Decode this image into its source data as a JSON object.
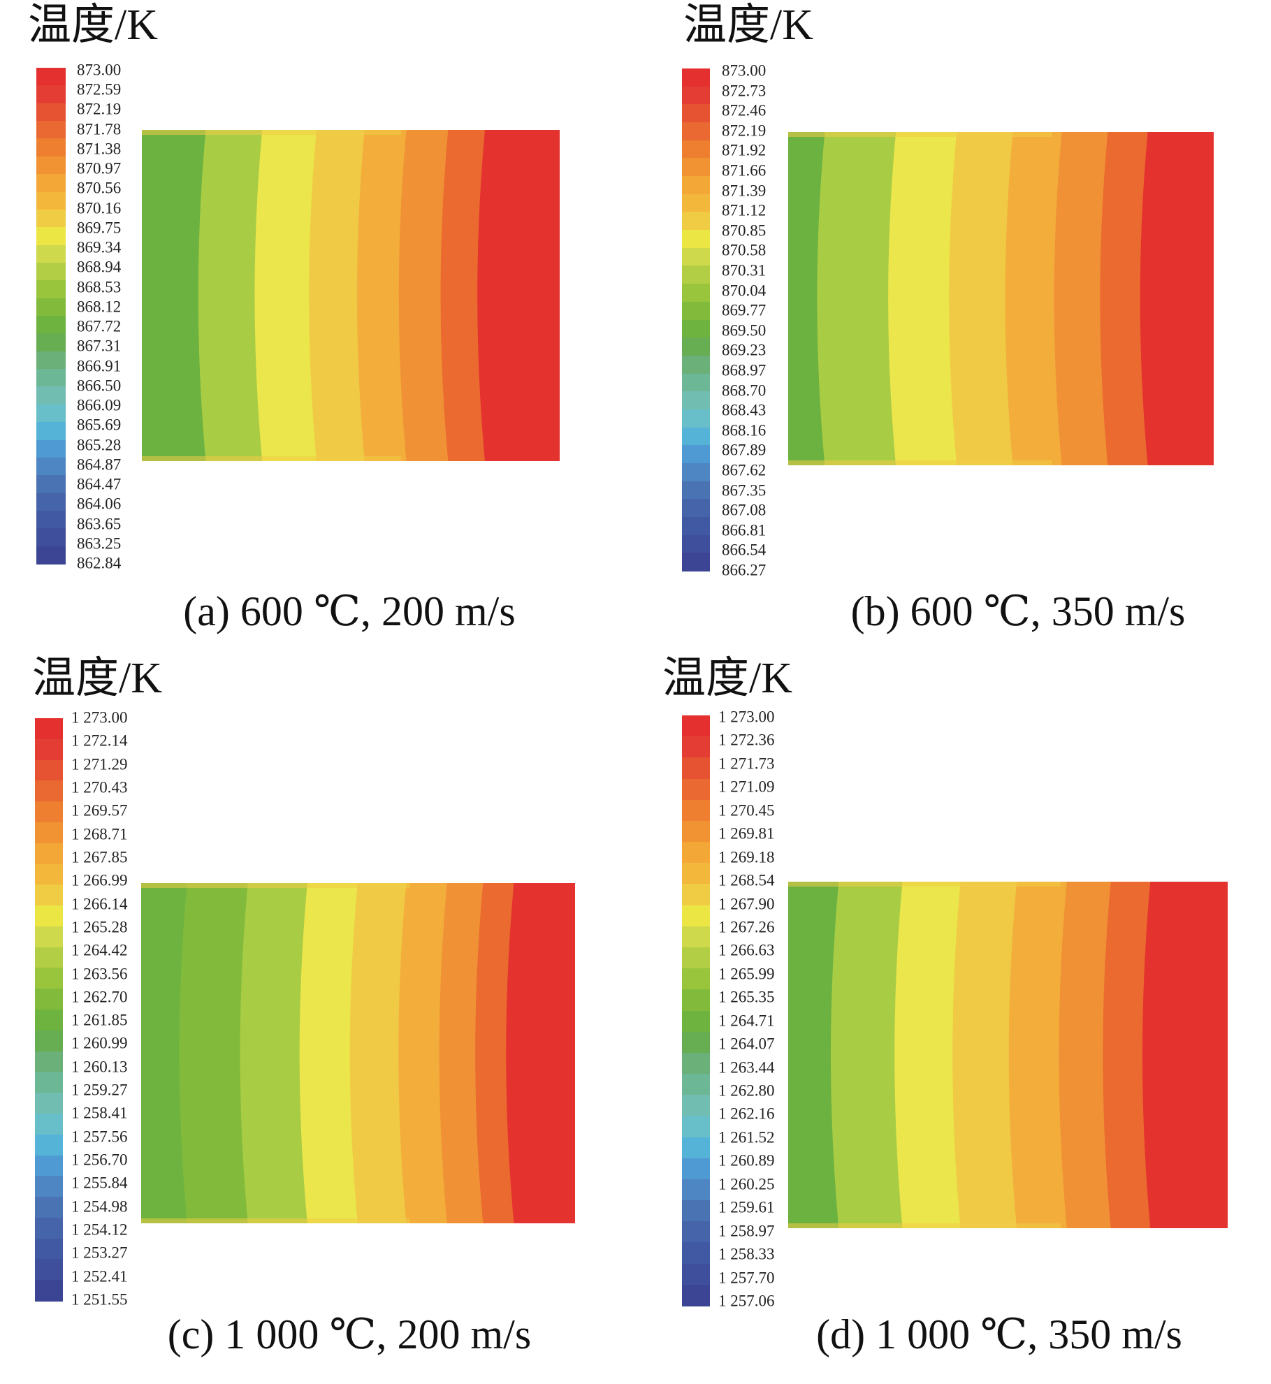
{
  "palette": [
    "#3c4594",
    "#404f9c",
    "#4159a2",
    "#4664a9",
    "#4a73b4",
    "#4d86c3",
    "#4f9ad2",
    "#56b3d8",
    "#68bfc9",
    "#71bdb1",
    "#6cb795",
    "#6ab078",
    "#67ad52",
    "#6eb33f",
    "#82bb3c",
    "#98c53c",
    "#b1ce45",
    "#cfd94c",
    "#ece645",
    "#f0cc45",
    "#f3b73c",
    "#f3a737",
    "#f19233",
    "#ee7e30",
    "#ea6831",
    "#e65332",
    "#e43e34",
    "#e4312f"
  ],
  "panels": [
    {
      "unit_title": "温度/K",
      "caption": "(a) 600 ℃, 200 m/s",
      "ticks": [
        "873.00",
        "872.59",
        "872.19",
        "871.78",
        "871.38",
        "870.97",
        "870.56",
        "870.16",
        "869.75",
        "869.34",
        "868.94",
        "868.53",
        "868.12",
        "867.72",
        "867.31",
        "866.91",
        "866.50",
        "866.09",
        "865.69",
        "865.28",
        "864.87",
        "864.47",
        "864.06",
        "863.65",
        "863.25",
        "862.84"
      ],
      "field_bands": [
        {
          "color": "#6cb240",
          "width": 0.153
        },
        {
          "color": "#a9cc45",
          "width": 0.135
        },
        {
          "color": "#eae64b",
          "width": 0.13
        },
        {
          "color": "#f0ca45",
          "width": 0.115
        },
        {
          "color": "#f2ad3b",
          "width": 0.1
        },
        {
          "color": "#f09135",
          "width": 0.1
        },
        {
          "color": "#ea6a30",
          "width": 0.088
        },
        {
          "color": "#e4322f",
          "width": 0.179
        }
      ]
    },
    {
      "unit_title": "温度/K",
      "caption": "(b) 600 ℃, 350 m/s",
      "ticks": [
        "873.00",
        "872.73",
        "872.46",
        "872.19",
        "871.92",
        "871.66",
        "871.39",
        "871.12",
        "870.85",
        "870.58",
        "870.31",
        "870.04",
        "869.77",
        "869.50",
        "869.23",
        "868.97",
        "868.70",
        "868.43",
        "868.16",
        "867.89",
        "867.62",
        "867.35",
        "867.08",
        "866.81",
        "866.54",
        "866.27"
      ],
      "field_bands": [
        {
          "color": "#6cb240",
          "width": 0.086
        },
        {
          "color": "#a9cc45",
          "width": 0.167
        },
        {
          "color": "#eae64b",
          "width": 0.143
        },
        {
          "color": "#f0ca45",
          "width": 0.132
        },
        {
          "color": "#f2ad3b",
          "width": 0.115
        },
        {
          "color": "#f09135",
          "width": 0.108
        },
        {
          "color": "#ea6a30",
          "width": 0.094
        },
        {
          "color": "#e4322f",
          "width": 0.155
        }
      ]
    },
    {
      "unit_title": "温度/K",
      "caption": "(c) 1 000 ℃, 200 m/s",
      "ticks": [
        "1 273.00",
        "1 272.14",
        "1 271.29",
        "1 270.43",
        "1 269.57",
        "1 268.71",
        "1 267.85",
        "1 266.99",
        "1 266.14",
        "1 265.28",
        "1 264.42",
        "1 263.56",
        "1 262.70",
        "1 261.85",
        "1 260.99",
        "1 260.13",
        "1 259.27",
        "1 258.41",
        "1 257.56",
        "1 256.70",
        "1 255.84",
        "1 254.98",
        "1 254.12",
        "1 253.27",
        "1 252.41",
        "1 251.55"
      ],
      "field_bands": [
        {
          "color": "#6eb33f",
          "width": 0.106
        },
        {
          "color": "#82bb3c",
          "width": 0.14
        },
        {
          "color": "#a9cc45",
          "width": 0.137
        },
        {
          "color": "#eae64b",
          "width": 0.116
        },
        {
          "color": "#f0ca45",
          "width": 0.112
        },
        {
          "color": "#f2ad3b",
          "width": 0.094
        },
        {
          "color": "#f09135",
          "width": 0.083
        },
        {
          "color": "#ea6a30",
          "width": 0.071
        },
        {
          "color": "#e4322f",
          "width": 0.141
        }
      ]
    },
    {
      "unit_title": "温度/K",
      "caption": "(d) 1 000 ℃, 350 m/s",
      "ticks": [
        "1 273.00",
        "1 272.36",
        "1 271.73",
        "1 271.09",
        "1 270.45",
        "1 269.81",
        "1 269.18",
        "1 268.54",
        "1 267.90",
        "1 267.26",
        "1 266.63",
        "1 265.99",
        "1 265.35",
        "1 264.71",
        "1 264.07",
        "1 263.44",
        "1 262.80",
        "1 262.16",
        "1 261.52",
        "1 260.89",
        "1 260.25",
        "1 259.61",
        "1 258.97",
        "1 258.33",
        "1 257.70",
        "1 257.06"
      ],
      "field_bands": [
        {
          "color": "#6cb240",
          "width": 0.115
        },
        {
          "color": "#a9cc45",
          "width": 0.145
        },
        {
          "color": "#eae64b",
          "width": 0.132
        },
        {
          "color": "#f0ca45",
          "width": 0.128
        },
        {
          "color": "#f2ad3b",
          "width": 0.114
        },
        {
          "color": "#f09135",
          "width": 0.1
        },
        {
          "color": "#ea6a30",
          "width": 0.09
        },
        {
          "color": "#e4322f",
          "width": 0.176
        }
      ]
    }
  ],
  "chart_data": [
    {
      "type": "heatmap",
      "title": "温度/K",
      "caption": "(a) 600 ℃, 200 m/s",
      "colorbar_range": [
        862.84,
        873.0
      ],
      "field_min": 868.12,
      "field_max": 873.0
    },
    {
      "type": "heatmap",
      "title": "温度/K",
      "caption": "(b) 600 ℃, 350 m/s",
      "colorbar_range": [
        866.27,
        873.0
      ],
      "field_min": 869.77,
      "field_max": 873.0
    },
    {
      "type": "heatmap",
      "title": "温度/K",
      "caption": "(c) 1 000 ℃, 200 m/s",
      "colorbar_range": [
        1251.55,
        1273.0
      ],
      "field_min": 1261.85,
      "field_max": 1273.0
    },
    {
      "type": "heatmap",
      "title": "温度/K",
      "caption": "(d) 1 000 ℃, 350 m/s",
      "colorbar_range": [
        1257.06,
        1273.0
      ],
      "field_min": 1264.71,
      "field_max": 1273.0
    }
  ]
}
